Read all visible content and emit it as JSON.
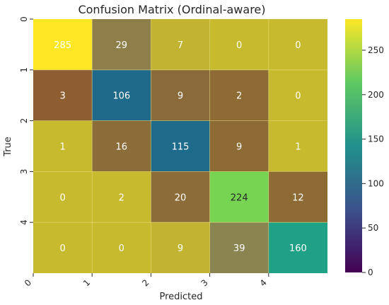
{
  "chart_data": {
    "type": "heatmap",
    "title": "Confusion Matrix (Ordinal-aware)",
    "xlabel": "Predicted",
    "ylabel": "True",
    "x_tick_labels": [
      "0",
      "1",
      "2",
      "3",
      "4"
    ],
    "y_tick_labels": [
      "0",
      "1",
      "2",
      "3",
      "4"
    ],
    "matrix": [
      [
        285,
        29,
        7,
        0,
        0
      ],
      [
        3,
        106,
        9,
        2,
        0
      ],
      [
        1,
        16,
        115,
        9,
        1
      ],
      [
        0,
        2,
        20,
        224,
        12
      ],
      [
        0,
        0,
        9,
        39,
        160
      ]
    ],
    "cell_colors": [
      [
        "#fde725",
        "#8d7e4a",
        "#c2b431",
        "#c8ba2e",
        "#c8ba2e"
      ],
      [
        "#8e5e33",
        "#1f6a8a",
        "#8a6a3a",
        "#8e6b34",
        "#c8ba2e"
      ],
      [
        "#c8ba2e",
        "#8c6d3a",
        "#1e6b8c",
        "#8e6b34",
        "#c8ba2e"
      ],
      [
        "#c8ba2e",
        "#c8ba2e",
        "#8c6d3a",
        "#76d452",
        "#8e6b34"
      ],
      [
        "#c8ba2e",
        "#c8ba2e",
        "#c2b431",
        "#8a8450",
        "#1fa188"
      ]
    ],
    "colorbar": {
      "colormap": "viridis",
      "min": 0,
      "max": 285,
      "ticks": [
        0,
        50,
        100,
        150,
        200,
        250
      ],
      "stops": [
        "#440154",
        "#3b528b",
        "#21918c",
        "#5ec962",
        "#fde725"
      ]
    },
    "text_colors": {
      "light": "#ffffff",
      "dark": "#262626"
    }
  }
}
